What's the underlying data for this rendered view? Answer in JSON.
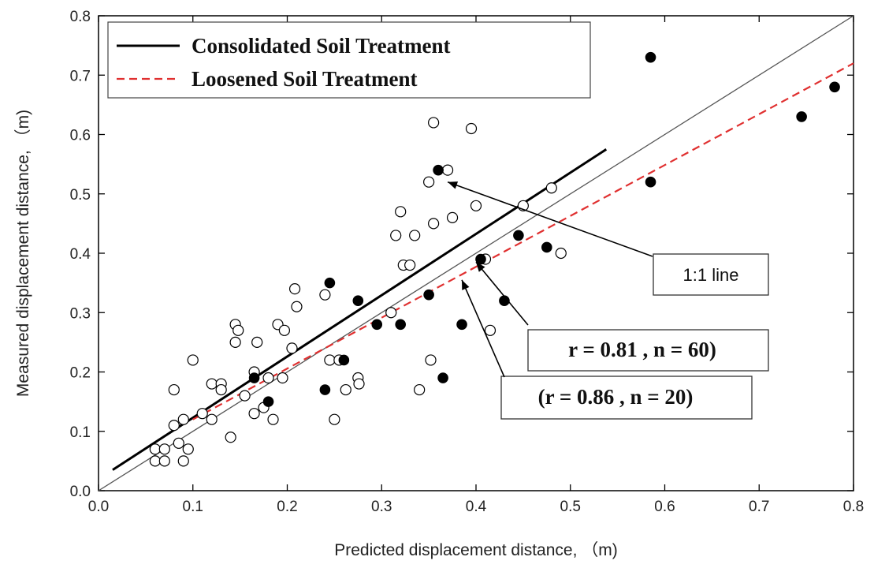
{
  "chart_data": {
    "type": "scatter",
    "xlabel": "Predicted displacement distance, （m)",
    "ylabel": "Measured displacement distance, （m)",
    "xlim": [
      0.0,
      0.8
    ],
    "ylim": [
      0.0,
      0.8
    ],
    "x_ticks": [
      "0.0",
      "0.1",
      "0.2",
      "0.3",
      "0.4",
      "0.5",
      "0.6",
      "0.7",
      "0.8"
    ],
    "y_ticks": [
      "0.0",
      "0.1",
      "0.2",
      "0.3",
      "0.4",
      "0.5",
      "0.6",
      "0.7",
      "0.8"
    ],
    "grid": false,
    "legend_position": "top-left",
    "legend": [
      {
        "label": "Consolidated Soil Treatment",
        "style": "solid",
        "color": "#000000"
      },
      {
        "label": "Loosened Soil Treatment",
        "style": "dashed",
        "color": "#e03030"
      }
    ],
    "series": [
      {
        "marker": "open-circle",
        "color": "#000000",
        "points": [
          [
            0.06,
            0.07
          ],
          [
            0.06,
            0.05
          ],
          [
            0.07,
            0.05
          ],
          [
            0.07,
            0.07
          ],
          [
            0.08,
            0.11
          ],
          [
            0.09,
            0.05
          ],
          [
            0.085,
            0.08
          ],
          [
            0.09,
            0.12
          ],
          [
            0.095,
            0.07
          ],
          [
            0.08,
            0.17
          ],
          [
            0.1,
            0.22
          ],
          [
            0.11,
            0.13
          ],
          [
            0.12,
            0.12
          ],
          [
            0.12,
            0.18
          ],
          [
            0.13,
            0.18
          ],
          [
            0.13,
            0.17
          ],
          [
            0.14,
            0.09
          ],
          [
            0.145,
            0.25
          ],
          [
            0.145,
            0.28
          ],
          [
            0.148,
            0.27
          ],
          [
            0.155,
            0.16
          ],
          [
            0.165,
            0.13
          ],
          [
            0.165,
            0.2
          ],
          [
            0.168,
            0.25
          ],
          [
            0.175,
            0.14
          ],
          [
            0.18,
            0.19
          ],
          [
            0.185,
            0.12
          ],
          [
            0.19,
            0.28
          ],
          [
            0.195,
            0.19
          ],
          [
            0.197,
            0.27
          ],
          [
            0.205,
            0.24
          ],
          [
            0.208,
            0.34
          ],
          [
            0.21,
            0.31
          ],
          [
            0.24,
            0.33
          ],
          [
            0.245,
            0.22
          ],
          [
            0.25,
            0.12
          ],
          [
            0.255,
            0.22
          ],
          [
            0.262,
            0.17
          ],
          [
            0.275,
            0.19
          ],
          [
            0.276,
            0.18
          ],
          [
            0.31,
            0.3
          ],
          [
            0.315,
            0.43
          ],
          [
            0.32,
            0.47
          ],
          [
            0.323,
            0.38
          ],
          [
            0.33,
            0.38
          ],
          [
            0.335,
            0.43
          ],
          [
            0.34,
            0.17
          ],
          [
            0.35,
            0.52
          ],
          [
            0.352,
            0.22
          ],
          [
            0.355,
            0.45
          ],
          [
            0.355,
            0.62
          ],
          [
            0.37,
            0.54
          ],
          [
            0.375,
            0.46
          ],
          [
            0.395,
            0.61
          ],
          [
            0.4,
            0.48
          ],
          [
            0.41,
            0.39
          ],
          [
            0.415,
            0.27
          ],
          [
            0.45,
            0.48
          ],
          [
            0.48,
            0.51
          ],
          [
            0.49,
            0.4
          ]
        ]
      },
      {
        "marker": "filled-circle",
        "color": "#000000",
        "points": [
          [
            0.165,
            0.19
          ],
          [
            0.18,
            0.15
          ],
          [
            0.24,
            0.17
          ],
          [
            0.245,
            0.35
          ],
          [
            0.26,
            0.22
          ],
          [
            0.275,
            0.32
          ],
          [
            0.295,
            0.28
          ],
          [
            0.32,
            0.28
          ],
          [
            0.35,
            0.33
          ],
          [
            0.36,
            0.54
          ],
          [
            0.365,
            0.19
          ],
          [
            0.385,
            0.28
          ],
          [
            0.405,
            0.39
          ],
          [
            0.43,
            0.32
          ],
          [
            0.445,
            0.43
          ],
          [
            0.475,
            0.41
          ],
          [
            0.585,
            0.73
          ],
          [
            0.585,
            0.52
          ],
          [
            0.745,
            0.63
          ],
          [
            0.78,
            0.68
          ]
        ]
      }
    ],
    "lines": [
      {
        "name": "1:1 line",
        "color": "#555555",
        "style": "solid",
        "x": [
          0.0,
          0.8
        ],
        "y": [
          0.0,
          0.8
        ]
      },
      {
        "name": "Consolidated Soil Treatment",
        "color": "#000000",
        "style": "solid",
        "x": [
          0.015,
          0.538
        ],
        "y": [
          0.035,
          0.575
        ]
      },
      {
        "name": "Loosened Soil Treatment",
        "color": "#e03030",
        "style": "dashed",
        "x": [
          0.1,
          0.8
        ],
        "y": [
          0.12,
          0.72
        ]
      }
    ],
    "annotations": [
      {
        "text": "1:1 line",
        "target": [
          0.37,
          0.52
        ],
        "style": "sans"
      },
      {
        "text": "r = 0.81 , n = 60)",
        "target": [
          0.4,
          0.385
        ],
        "style": "serif"
      },
      {
        "text": "(r = 0.86 , n = 20)",
        "target": [
          0.385,
          0.355
        ],
        "style": "serif"
      }
    ]
  }
}
